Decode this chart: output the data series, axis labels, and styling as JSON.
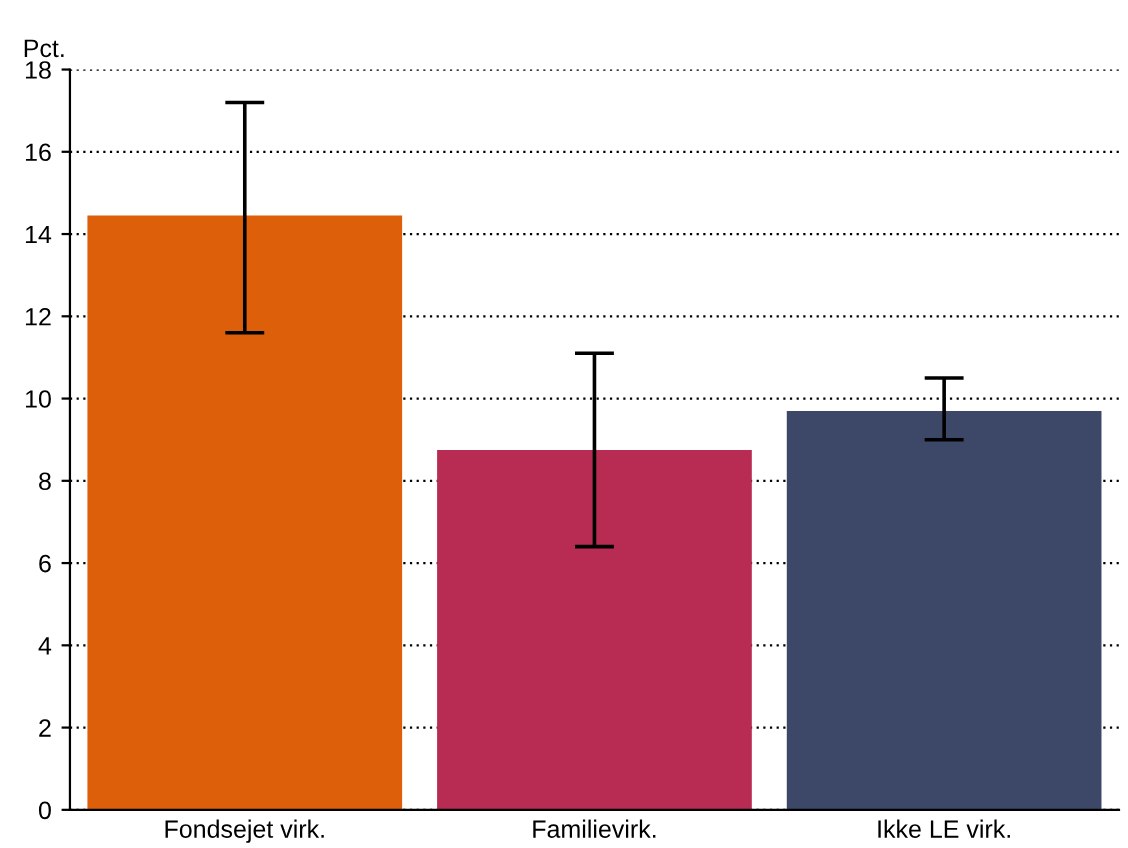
{
  "chart_data": {
    "type": "bar",
    "ylabel": "Pct.",
    "categories": [
      "Fondsejet virk.",
      "Familievirk.",
      "Ikke LE virk."
    ],
    "values": [
      14.45,
      8.75,
      9.7
    ],
    "errors": [
      [
        11.6,
        17.2
      ],
      [
        6.4,
        11.1
      ],
      [
        9.0,
        10.5
      ]
    ],
    "colors": [
      "#dd5f0a",
      "#b82b52",
      "#3d4868"
    ],
    "ylim": [
      0,
      18
    ],
    "yticks": [
      0,
      2,
      4,
      6,
      8,
      10,
      12,
      14,
      16,
      18
    ],
    "grid": "y"
  }
}
